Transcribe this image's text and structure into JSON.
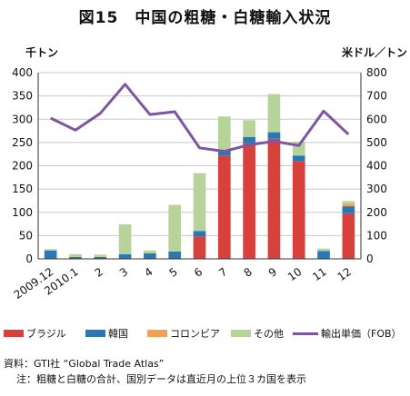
{
  "title": "図15　中国の粗糖・白糖輸入状況",
  "chart_data": {
    "type": "bar",
    "stacked": true,
    "categories": [
      "2009.12",
      "2010.1",
      "2",
      "3",
      "4",
      "5",
      "6",
      "7",
      "8",
      "9",
      "10",
      "11",
      "12"
    ],
    "left_axis": {
      "unit": "千トン",
      "ylim": [
        0,
        400
      ],
      "ticks": [
        0,
        50,
        100,
        150,
        200,
        250,
        300,
        350,
        400
      ]
    },
    "right_axis": {
      "unit": "米ドル／トン",
      "ylim": [
        0,
        800
      ],
      "ticks": [
        0,
        100,
        200,
        300,
        400,
        500,
        600,
        700,
        800
      ]
    },
    "series": [
      {
        "name": "ブラジル",
        "color": "#d8403b",
        "values": [
          0,
          0,
          0,
          0,
          0,
          0,
          48,
          222,
          248,
          258,
          210,
          0,
          98
        ]
      },
      {
        "name": "韓国",
        "color": "#2a77b8",
        "values": [
          18,
          4,
          4,
          10,
          12,
          16,
          12,
          12,
          14,
          14,
          12,
          17,
          15
        ]
      },
      {
        "name": "コロンビア",
        "color": "#f1a155",
        "values": [
          0,
          0,
          0,
          0,
          0,
          0,
          0,
          0,
          0,
          0,
          0,
          0,
          5
        ]
      },
      {
        "name": "その他",
        "color": "#b6d49a",
        "values": [
          3,
          6,
          5,
          64,
          6,
          100,
          124,
          72,
          36,
          82,
          30,
          5,
          6
        ]
      }
    ],
    "line": {
      "name": "輸出単価（FOB）",
      "color": "#7d55a2",
      "axis": "right",
      "values": [
        605,
        553,
        625,
        750,
        620,
        632,
        477,
        462,
        490,
        505,
        487,
        635,
        535
      ]
    },
    "legend_position": "bottom",
    "grid": true
  },
  "notes": {
    "source": "資料：GTI社 “Global Trade Atlas”",
    "note": "注：粗糖と白糖の合計、国別データは直近月の上位３カ国を表示"
  }
}
